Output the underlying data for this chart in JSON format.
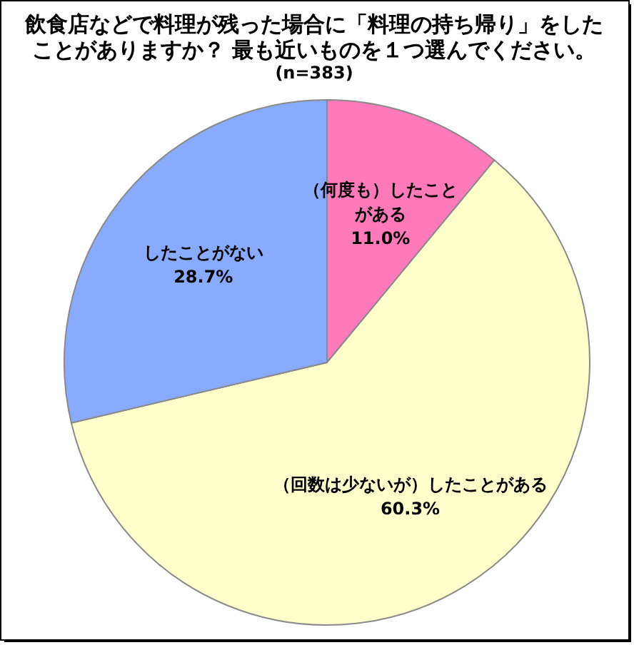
{
  "chart_data": {
    "type": "pie",
    "title": "飲食店などで料理が残った場合に「料理の持ち帰り」をしたことがありますか？ 最も近いものを１つ選んでください。",
    "subtitle": "(n=383)",
    "categories": [
      "（何度も）したことがある",
      "（回数は少ないが）したことがある",
      "したことがない"
    ],
    "values": [
      11.0,
      60.3,
      28.7
    ],
    "colors": [
      "#ff79bb",
      "#ffffcc",
      "#88aaff"
    ],
    "value_labels": [
      "11.0%",
      "60.3%",
      "28.7%"
    ]
  }
}
